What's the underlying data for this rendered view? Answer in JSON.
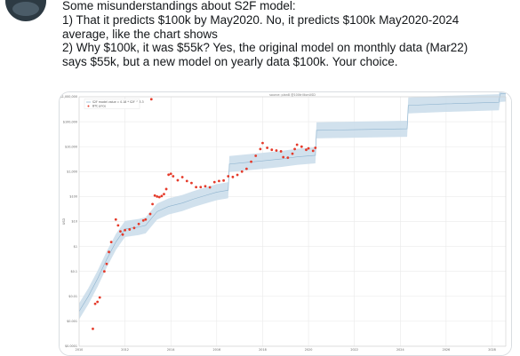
{
  "tweet": {
    "lines": [
      "Some misunderstandings about S2F model:",
      "1) That it predicts $100k by May2020. No, it predicts $100k May2020-2024",
      "average, like the chart shows",
      "2) Why $100k, it was $55k? Yes, the original model on monthly data (Mar22)",
      "says $55k, but a new model on yearly data $100k. Your choice."
    ]
  },
  "colors": {
    "band": "#c9dcea",
    "model_line": "#8fb4cf",
    "points": "#e53a2a",
    "grid": "#e6e6e6",
    "axis": "#444444"
  },
  "chart_data": {
    "type": "scatter",
    "title": "source: plan8 @100trillionUSD",
    "legend": {
      "placement": "top-left",
      "entries": [
        "S2F model value = 0.18 * S2F ^ 3.3",
        "BTC price"
      ]
    },
    "ylabel": "USD",
    "yscale": "log",
    "ylim": [
      0.0001,
      1000000
    ],
    "yticks": [
      "$1,000,000",
      "$100,000",
      "$10,000",
      "$1,000",
      "$100",
      "$10",
      "$1",
      "$0.1",
      "$0.01",
      "$0.001",
      "$0.0001"
    ],
    "xlim": [
      2010,
      2028.6
    ],
    "xticks": [
      "2010",
      "2012",
      "2014",
      "2016",
      "2018",
      "2020",
      "2022",
      "2024",
      "2026",
      "2028"
    ],
    "model": {
      "x": [
        2010.0,
        2010.4,
        2010.8,
        2011.2,
        2011.6,
        2012.0,
        2012.6,
        2012.9,
        2013.4,
        2013.9,
        2014.5,
        2015.0,
        2015.5,
        2016.0,
        2016.5,
        2016.55,
        2017.2,
        2018.0,
        2018.8,
        2019.5,
        2020.3,
        2020.35,
        2022.0,
        2024.3,
        2024.35,
        2026.0,
        2028.3,
        2028.35,
        2028.6
      ],
      "y": [
        0.0025,
        0.01,
        0.05,
        0.3,
        1.5,
        5,
        6,
        7,
        25,
        40,
        55,
        80,
        110,
        150,
        180,
        2000,
        2300,
        2700,
        3200,
        3900,
        4500,
        45000,
        48000,
        52000,
        450000,
        520000,
        600000,
        1300000,
        1350000
      ]
    },
    "series": [
      {
        "name": "BTC price",
        "points": [
          [
            2010.6,
            0.0005
          ],
          [
            2010.7,
            0.005
          ],
          [
            2010.8,
            0.006
          ],
          [
            2010.9,
            0.009
          ],
          [
            2011.1,
            0.1
          ],
          [
            2011.2,
            0.2
          ],
          [
            2011.3,
            0.6
          ],
          [
            2011.4,
            1.5
          ],
          [
            2011.6,
            12
          ],
          [
            2011.7,
            7
          ],
          [
            2011.8,
            4
          ],
          [
            2011.9,
            3
          ],
          [
            2012.0,
            4.5
          ],
          [
            2012.2,
            4.8
          ],
          [
            2012.4,
            5.5
          ],
          [
            2012.6,
            8
          ],
          [
            2012.8,
            11
          ],
          [
            2012.9,
            12
          ],
          [
            2013.1,
            20
          ],
          [
            2013.2,
            50
          ],
          [
            2013.3,
            110
          ],
          [
            2013.4,
            100
          ],
          [
            2013.5,
            95
          ],
          [
            2013.6,
            105
          ],
          [
            2013.7,
            125
          ],
          [
            2013.8,
            200
          ],
          [
            2013.9,
            750
          ],
          [
            2014.0,
            820
          ],
          [
            2014.1,
            650
          ],
          [
            2014.3,
            450
          ],
          [
            2014.5,
            600
          ],
          [
            2014.7,
            420
          ],
          [
            2014.9,
            350
          ],
          [
            2015.1,
            240
          ],
          [
            2015.3,
            240
          ],
          [
            2015.5,
            260
          ],
          [
            2015.7,
            235
          ],
          [
            2015.9,
            380
          ],
          [
            2016.1,
            420
          ],
          [
            2016.3,
            440
          ],
          [
            2016.5,
            650
          ],
          [
            2016.7,
            610
          ],
          [
            2016.9,
            740
          ],
          [
            2017.1,
            1000
          ],
          [
            2017.3,
            1300
          ],
          [
            2017.5,
            2500
          ],
          [
            2017.7,
            4300
          ],
          [
            2017.9,
            8000
          ],
          [
            2018.0,
            14000
          ],
          [
            2018.2,
            9000
          ],
          [
            2018.4,
            7500
          ],
          [
            2018.6,
            7000
          ],
          [
            2018.8,
            6500
          ],
          [
            2018.9,
            3800
          ],
          [
            2019.1,
            3600
          ],
          [
            2019.3,
            5200
          ],
          [
            2019.4,
            8000
          ],
          [
            2019.5,
            12000
          ],
          [
            2019.7,
            10000
          ],
          [
            2019.9,
            7500
          ],
          [
            2020.0,
            8500
          ],
          [
            2020.2,
            6800
          ],
          [
            2020.3,
            9000
          ]
        ]
      },
      {
        "name": "",
        "points": [
          [
            2013.15,
            800000
          ]
        ]
      }
    ]
  }
}
